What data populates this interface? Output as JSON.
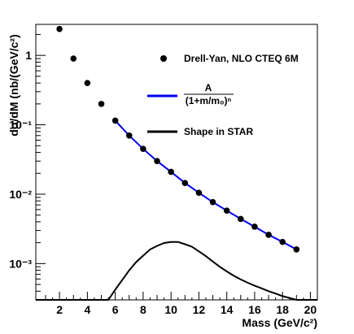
{
  "chart_data": {
    "type": "scatter",
    "title": "",
    "xlabel": "Mass (GeV/c²)",
    "ylabel": "dσ/dM (nb/(GeV/c²)",
    "xlim": [
      0.3,
      20.5
    ],
    "ylim": [
      0.0003,
      2.8
    ],
    "log_y": true,
    "grid": false,
    "legend_position": "top-right",
    "x_ticks": [
      2,
      4,
      6,
      8,
      10,
      12,
      14,
      16,
      18,
      20
    ],
    "y_ticks": [
      {
        "value": 0.001,
        "label": "10⁻³"
      },
      {
        "value": 0.01,
        "label": "10⁻²"
      },
      {
        "value": 0.1,
        "label": "10⁻¹"
      },
      {
        "value": 1,
        "label": "1"
      }
    ],
    "series": [
      {
        "name": "Drell-Yan, NLO CTEQ 6M",
        "kind": "markers",
        "color": "#000000",
        "x": [
          2,
          3,
          4,
          5,
          6,
          7,
          8,
          9,
          10,
          11,
          12,
          13,
          14,
          15,
          16,
          17,
          18,
          19
        ],
        "y": [
          2.4,
          0.9,
          0.4,
          0.2,
          0.115,
          0.07,
          0.045,
          0.03,
          0.021,
          0.0145,
          0.0105,
          0.0077,
          0.0058,
          0.0044,
          0.0034,
          0.0026,
          0.00205,
          0.0016
        ]
      },
      {
        "name": "A/(1+m/m₀)ⁿ",
        "kind": "line",
        "color": "#0000ee",
        "x": [
          6,
          7,
          8,
          9,
          10,
          11,
          12,
          13,
          14,
          15,
          16,
          17,
          18,
          19
        ],
        "y": [
          0.115,
          0.07,
          0.045,
          0.03,
          0.021,
          0.0145,
          0.0105,
          0.0077,
          0.0058,
          0.0044,
          0.0034,
          0.0026,
          0.00205,
          0.0016
        ]
      },
      {
        "name": "Shape in STAR",
        "kind": "line",
        "color": "#000000",
        "x": [
          0.3,
          5.5,
          6.0,
          6.5,
          7.0,
          7.5,
          8.0,
          8.5,
          9.0,
          9.5,
          10.0,
          10.5,
          11.0,
          11.5,
          12.0,
          12.5,
          13.0,
          13.5,
          14.0,
          14.5,
          15.0,
          15.5,
          16.0,
          16.5,
          17.0,
          17.5,
          18.0,
          18.5,
          19.0,
          19.3,
          20.5
        ],
        "y": [
          0.0003,
          0.0003,
          0.00042,
          0.00058,
          0.0008,
          0.00105,
          0.0013,
          0.0016,
          0.0018,
          0.00198,
          0.00205,
          0.00205,
          0.0019,
          0.00175,
          0.0015,
          0.00128,
          0.00107,
          0.0009,
          0.00077,
          0.00067,
          0.00059,
          0.00053,
          0.00048,
          0.00044,
          0.0004,
          0.00037,
          0.00034,
          0.00032,
          0.0003,
          0.0003,
          0.0003
        ]
      }
    ],
    "legend": [
      {
        "label": "Drell-Yan, NLO CTEQ 6M",
        "kind": "marker",
        "color": "#000000"
      },
      {
        "label_numerator": "A",
        "label_denominator": "(1+m/m₀)ⁿ",
        "kind": "line",
        "color": "#0000ee"
      },
      {
        "label": "Shape in STAR",
        "kind": "line",
        "color": "#000000"
      }
    ]
  }
}
